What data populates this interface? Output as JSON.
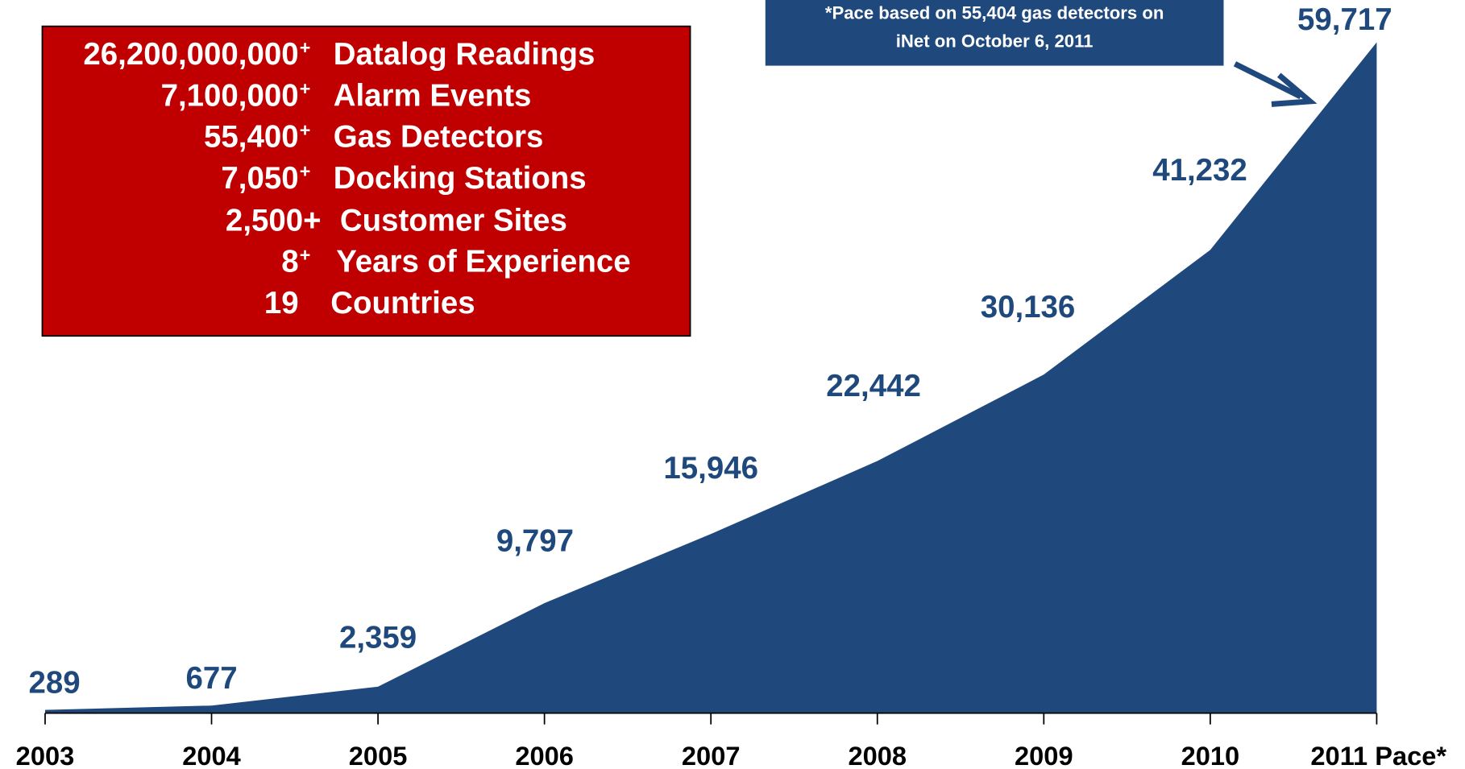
{
  "chart_data": {
    "type": "area",
    "categories": [
      "2003",
      "2004",
      "2005",
      "2006",
      "2007",
      "2008",
      "2009",
      "2010",
      "2011 Pace*"
    ],
    "values": [
      289,
      677,
      2359,
      9797,
      15946,
      22442,
      30136,
      41232,
      59717
    ],
    "value_labels": [
      "289",
      "677",
      "2,359",
      "9,797",
      "15,946",
      "22,442",
      "30,136",
      "41,232",
      "59,717"
    ],
    "color": "#1f497d",
    "annotation": [
      "*Pace based on 55,404 gas detectors on",
      "iNet on October 6, 2011"
    ],
    "info_box": [
      {
        "number": "26,200,000,000",
        "sup": "+",
        "label": "Datalog Readings"
      },
      {
        "number": "7,100,000",
        "sup": "+",
        "label": "Alarm Events"
      },
      {
        "number": "55,400",
        "sup": "+",
        "label": "Gas Detectors"
      },
      {
        "number": "7,050",
        "sup": "+",
        "label": "Docking Stations"
      },
      {
        "number": "2,500+",
        "label": "Customer Sites"
      },
      {
        "number": "8",
        "sup": "+",
        "label": "Years of Experience"
      },
      {
        "number": "19",
        "label": "Countries"
      }
    ]
  }
}
